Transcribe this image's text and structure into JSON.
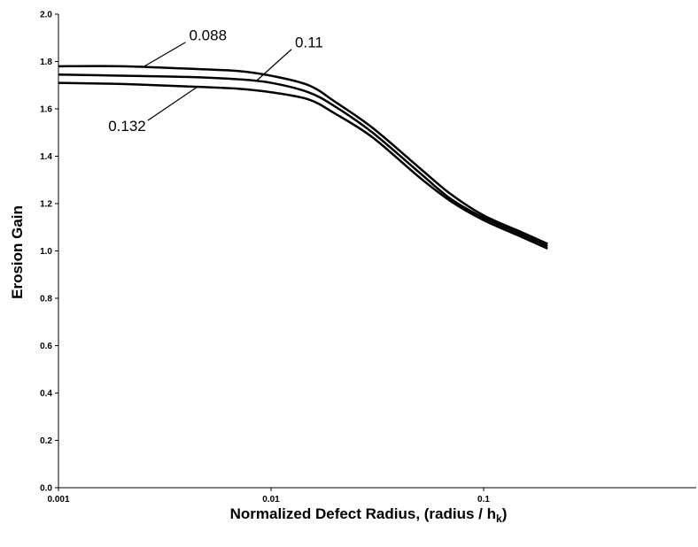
{
  "chart_data": {
    "type": "line",
    "xscale": "log",
    "xlim": [
      0.001,
      1
    ],
    "ylim": [
      0,
      2
    ],
    "grid": false,
    "xticks": [
      0.001,
      0.01,
      0.1
    ],
    "xtick_labels": [
      "0.001",
      "0.01",
      "0.1"
    ],
    "yticks": [
      0,
      0.2,
      0.4,
      0.6,
      0.8,
      1.0,
      1.2,
      1.4,
      1.6,
      1.8,
      2.0
    ],
    "ytick_labels": [
      "0.0",
      "0.2",
      "0.4",
      "0.6",
      "0.8",
      "1.0",
      "1.2",
      "1.4",
      "1.6",
      "1.8",
      "2.0"
    ],
    "ylabel": "Erosion Gain",
    "xlabel": {
      "main": "Normalized Defect Radius, (radius / h",
      "sub": "k",
      "end": ")"
    },
    "series": [
      {
        "name": "0.088",
        "x": [
          0.001,
          0.002,
          0.004,
          0.007,
          0.01,
          0.015,
          0.02,
          0.03,
          0.05,
          0.07,
          0.1,
          0.15,
          0.2
        ],
        "values": [
          1.78,
          1.78,
          1.77,
          1.76,
          1.74,
          1.7,
          1.63,
          1.52,
          1.35,
          1.24,
          1.15,
          1.08,
          1.03
        ]
      },
      {
        "name": "0.11",
        "x": [
          0.001,
          0.002,
          0.004,
          0.007,
          0.01,
          0.015,
          0.02,
          0.03,
          0.05,
          0.07,
          0.1,
          0.15,
          0.2
        ],
        "values": [
          1.745,
          1.74,
          1.735,
          1.725,
          1.71,
          1.67,
          1.61,
          1.5,
          1.33,
          1.22,
          1.14,
          1.07,
          1.02
        ]
      },
      {
        "name": "0.132",
        "x": [
          0.001,
          0.002,
          0.004,
          0.007,
          0.01,
          0.015,
          0.02,
          0.03,
          0.05,
          0.07,
          0.1,
          0.15,
          0.2
        ],
        "values": [
          1.71,
          1.705,
          1.695,
          1.685,
          1.67,
          1.64,
          1.58,
          1.48,
          1.31,
          1.21,
          1.13,
          1.06,
          1.01
        ]
      }
    ],
    "annotations": [
      {
        "text": "0.088",
        "series": "0.088",
        "x": 0.0025
      },
      {
        "text": "0.11",
        "series": "0.11",
        "x": 0.0085
      },
      {
        "text": "0.132",
        "series": "0.132",
        "x": 0.0045
      }
    ]
  }
}
